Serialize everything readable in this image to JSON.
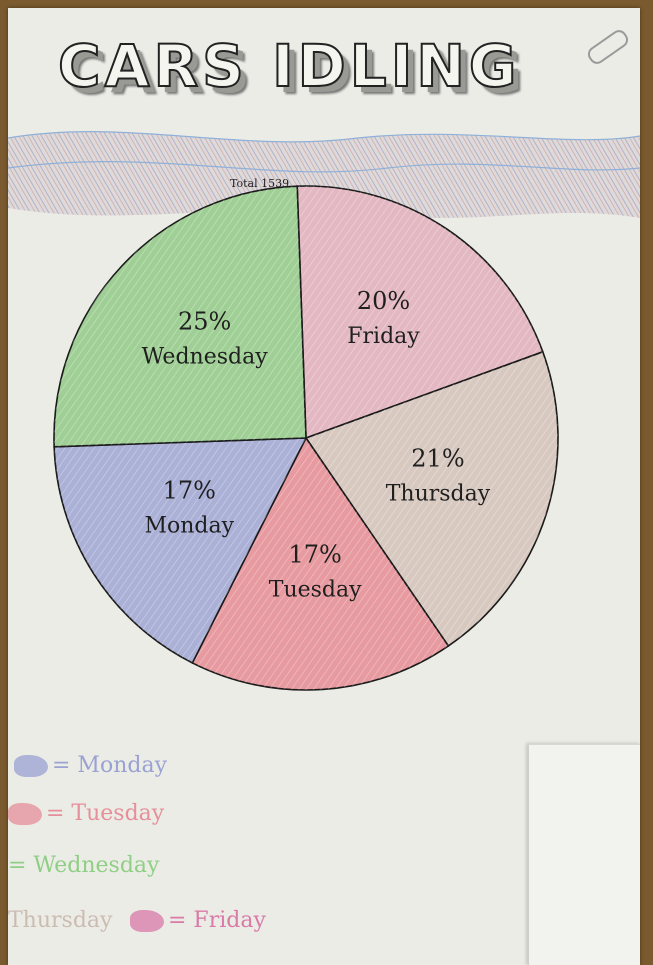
{
  "title": "CARS IDLING",
  "chart_data": {
    "type": "pie",
    "title": "CARS IDLING",
    "total_label": "Total 1539",
    "slices": [
      {
        "label": "Friday",
        "percent_label": "20%",
        "value": 20,
        "color": "#e3b8c2"
      },
      {
        "label": "Thursday",
        "percent_label": "21%",
        "value": 21,
        "color": "#d8c9c0"
      },
      {
        "label": "Tuesday",
        "percent_label": "17%",
        "value": 17,
        "color": "#e79aa0"
      },
      {
        "label": "Monday",
        "percent_label": "17%",
        "value": 17,
        "color": "#aab0d6"
      },
      {
        "label": "Wednesday",
        "percent_label": "25%",
        "value": 25,
        "color": "#9fcf95"
      }
    ]
  },
  "legend": {
    "items": [
      {
        "text": "= Monday",
        "color": "#9aa2d2"
      },
      {
        "text": "= Tuesday",
        "color": "#e58f9a"
      },
      {
        "text": "= Wednesday",
        "color": "#8fcf85"
      },
      {
        "text": "Thursday",
        "color": "#cbbcb2"
      },
      {
        "text": "= Friday",
        "color": "#d97aa8"
      }
    ]
  }
}
